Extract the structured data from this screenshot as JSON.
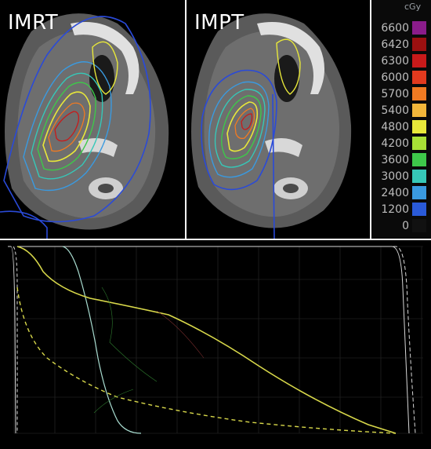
{
  "panels": {
    "imrt": {
      "title": "IMRT"
    },
    "impt": {
      "title": "IMPT"
    }
  },
  "legend": {
    "unit": "cGy",
    "levels": [
      {
        "label": "6600",
        "color": "#8a1c8a"
      },
      {
        "label": "6420",
        "color": "#9b1010"
      },
      {
        "label": "6300",
        "color": "#c81a1a"
      },
      {
        "label": "6000",
        "color": "#e23a1e"
      },
      {
        "label": "5700",
        "color": "#f07a22"
      },
      {
        "label": "5400",
        "color": "#f2b63a"
      },
      {
        "label": "4800",
        "color": "#e8e83a"
      },
      {
        "label": "4200",
        "color": "#a8e036"
      },
      {
        "label": "3600",
        "color": "#3ec84a"
      },
      {
        "label": "3000",
        "color": "#36c8b8"
      },
      {
        "label": "2400",
        "color": "#3a9ae0"
      },
      {
        "label": "1200",
        "color": "#2a5ad8"
      },
      {
        "label": "0",
        "color": "#111111"
      }
    ]
  },
  "dvh": {
    "curve_colors": {
      "yellow": "#d8d84a",
      "cyan": "#a8dcd0",
      "white": "#d8d8d8"
    }
  }
}
